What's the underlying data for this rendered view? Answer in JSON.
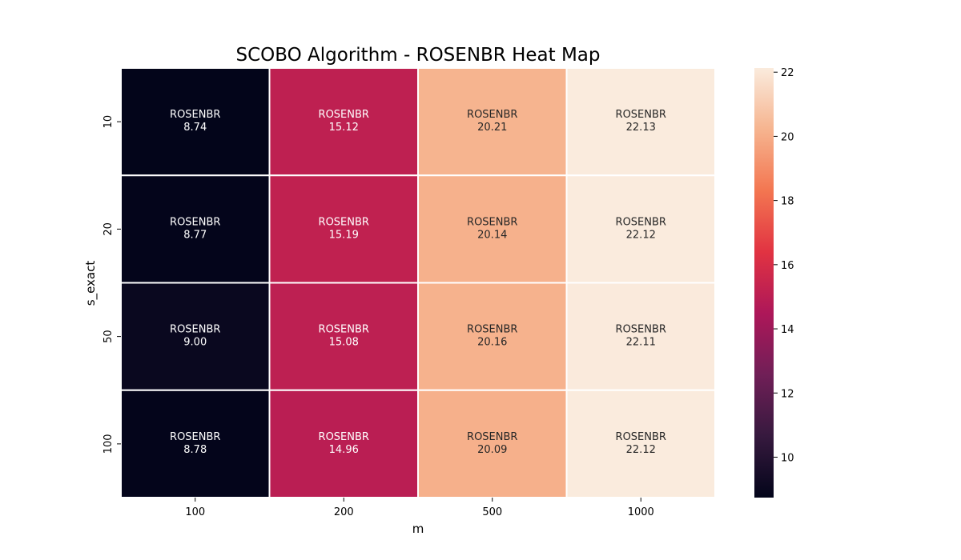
{
  "chart_data": {
    "type": "heatmap",
    "title": "SCOBO Algorithm - ROSENBR Heat Map",
    "xlabel": "m",
    "ylabel": "s_exact",
    "x_categories": [
      "100",
      "200",
      "500",
      "1000"
    ],
    "y_categories": [
      "10",
      "20",
      "50",
      "100"
    ],
    "cell_prefix": "ROSENBR",
    "values": [
      [
        8.74,
        15.12,
        20.21,
        22.13
      ],
      [
        8.77,
        15.19,
        20.14,
        22.12
      ],
      [
        9.0,
        15.08,
        20.16,
        22.11
      ],
      [
        8.78,
        14.96,
        20.09,
        22.12
      ]
    ],
    "value_labels": [
      [
        "8.74",
        "15.12",
        "20.21",
        "22.13"
      ],
      [
        "8.77",
        "15.19",
        "20.14",
        "22.12"
      ],
      [
        "9.00",
        "15.08",
        "20.16",
        "22.11"
      ],
      [
        "8.78",
        "14.96",
        "20.09",
        "22.12"
      ]
    ],
    "colorbar": {
      "colormap": "rocket",
      "vmin": 8.74,
      "vmax": 22.13,
      "ticks": [
        10,
        12,
        14,
        16,
        18,
        20,
        22
      ],
      "tick_labels": [
        "10",
        "12",
        "14",
        "16",
        "18",
        "20",
        "22"
      ]
    },
    "grid": false,
    "colors": {
      "text_on_dark": "#ffffff",
      "text_on_light": "#262626",
      "cell_border": "#ffffff",
      "colormap_stops": [
        "#03051a",
        "#36193e",
        "#701f57",
        "#ad1759",
        "#e13342",
        "#f37651",
        "#f6b48f",
        "#faebdd"
      ]
    }
  }
}
